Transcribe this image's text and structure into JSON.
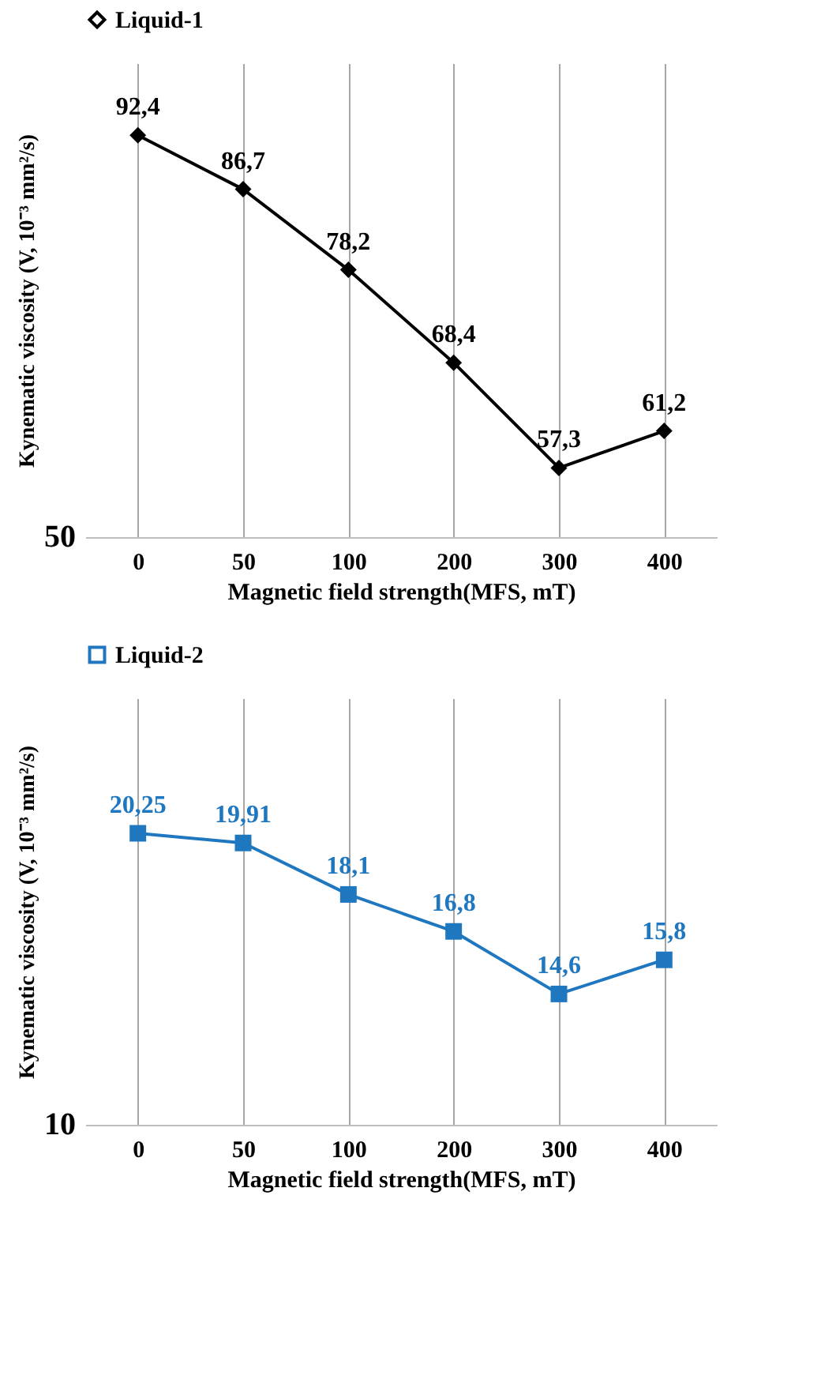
{
  "chart_data": [
    {
      "type": "line",
      "categories": [
        "0",
        "50",
        "100",
        "200",
        "300",
        "400"
      ],
      "xlabel": "Magnetic field strength(MFS, mT)",
      "ylabel": "Kynematic viscosity (V, 10⁻³ mm²/s)",
      "ylim": [
        50,
        100
      ],
      "annotations": [
        "50"
      ],
      "grid": "x",
      "legend": "top",
      "marker": "diamond",
      "series": [
        {
          "name": "Liquid-1",
          "color": "#000000",
          "values": [
            92.4,
            86.7,
            78.2,
            68.4,
            57.3,
            61.2
          ],
          "value_labels": [
            "92,4",
            "86,7",
            "78,2",
            "68,4",
            "57,3",
            "61,2"
          ]
        }
      ]
    },
    {
      "type": "line",
      "categories": [
        "0",
        "50",
        "100",
        "200",
        "300",
        "400"
      ],
      "xlabel": "Magnetic field strength(MFS, mT)",
      "ylabel": "Kynematic viscosity (V, 10⁻³ mm²/s)",
      "ylim": [
        10,
        25
      ],
      "annotations": [
        "10"
      ],
      "grid": "x",
      "legend": "top",
      "marker": "square",
      "series": [
        {
          "name": "Liquid-2",
          "color": "#1f77c0",
          "values": [
            20.25,
            19.91,
            18.1,
            16.8,
            14.6,
            15.8
          ],
          "value_labels": [
            "20,25",
            "19,91",
            "18,1",
            "16,8",
            "14,6",
            "15,8"
          ]
        }
      ]
    }
  ]
}
